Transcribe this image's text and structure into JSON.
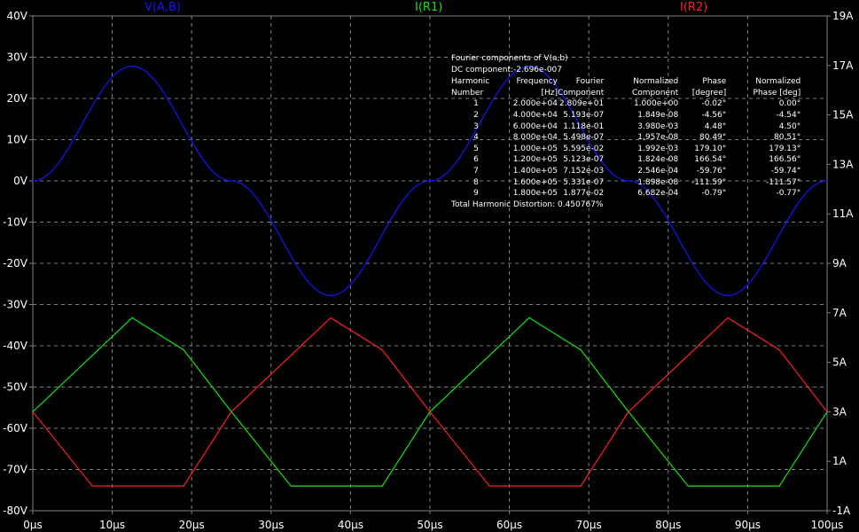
{
  "legend": {
    "vab": {
      "label": "V(A,B)",
      "color": "#1515ff"
    },
    "ir1": {
      "label": "I(R1)",
      "color": "#13e313"
    },
    "ir2": {
      "label": "I(R2)",
      "color": "#ff2020"
    }
  },
  "chart_data": {
    "type": "line",
    "background": "#000000",
    "grid": true,
    "grid_style": "dashed",
    "x_axis": {
      "range": [
        0,
        100
      ],
      "unit": "µs",
      "ticks": [
        0,
        10,
        20,
        30,
        40,
        50,
        60,
        70,
        80,
        90,
        100
      ],
      "tick_labels": [
        "0µs",
        "10µs",
        "20µs",
        "30µs",
        "40µs",
        "50µs",
        "60µs",
        "70µs",
        "80µs",
        "90µs",
        "100µs"
      ]
    },
    "y_left": {
      "range": [
        -80,
        40
      ],
      "ticks": [
        40,
        30,
        20,
        10,
        0,
        -10,
        -20,
        -30,
        -40,
        -50,
        -60,
        -70,
        -80
      ],
      "tick_labels": [
        "40V",
        "30V",
        "20V",
        "10V",
        "0V",
        "-10V",
        "-20V",
        "-30V",
        "-40V",
        "-50V",
        "-60V",
        "-70V",
        "-80V"
      ]
    },
    "y_right": {
      "range": [
        -1,
        19
      ],
      "ticks": [
        19,
        17,
        15,
        13,
        11,
        9,
        7,
        5,
        3,
        1,
        -1
      ],
      "tick_labels": [
        "19A",
        "17A",
        "15A",
        "13A",
        "11A",
        "9A",
        "7A",
        "5A",
        "3A",
        "1A",
        "-1A"
      ]
    },
    "series": [
      {
        "name": "V(A,B)",
        "axis": "left",
        "color": "#1515ff",
        "x": [
          0,
          12.5,
          25,
          37.5,
          50,
          62.5,
          75,
          87.5,
          100
        ],
        "y": [
          0,
          27.8,
          0,
          -27.8,
          0,
          27.8,
          0,
          -27.8,
          0
        ]
      },
      {
        "name": "I(R1)",
        "axis": "right",
        "color": "#13e313",
        "x": [
          0,
          12.5,
          19,
          25,
          32.5,
          44,
          50,
          62.5,
          69,
          75,
          82.5,
          94,
          100
        ],
        "y": [
          3,
          6.8,
          5.5,
          3,
          0,
          0,
          3,
          6.8,
          5.5,
          3,
          0,
          0,
          3
        ]
      },
      {
        "name": "I(R2)",
        "axis": "right",
        "color": "#ff2020",
        "x": [
          0,
          7.5,
          19,
          25,
          37.5,
          44,
          50,
          57.5,
          69,
          75,
          87.5,
          94,
          100
        ],
        "y": [
          3,
          0,
          0,
          3,
          6.8,
          5.5,
          3,
          0,
          0,
          3,
          6.8,
          5.5,
          3
        ]
      }
    ]
  },
  "fourier": {
    "title": "Fourier components of V(a,b)",
    "dc": "DC component:-2.696e-007",
    "headers1": [
      "Harmonic",
      "Frequency",
      "Fourier",
      "Normalized",
      "Phase",
      "Normalized"
    ],
    "headers2": [
      "Number",
      "[Hz]",
      "Component",
      "Component",
      "[degree]",
      "Phase [deg]"
    ],
    "rows": [
      [
        "1",
        "2.000e+04",
        "2.809e+01",
        "1.000e+00",
        "-0.02°",
        "0.00°"
      ],
      [
        "2",
        "4.000e+04",
        "5.193e-07",
        "1.849e-08",
        "-4.56°",
        "-4.54°"
      ],
      [
        "3",
        "6.000e+04",
        "1.118e-01",
        "3.980e-03",
        "4.48°",
        "4.50°"
      ],
      [
        "4",
        "8.000e+04",
        "5.498e-07",
        "1.957e-08",
        "80.49°",
        "80.51°"
      ],
      [
        "5",
        "1.000e+05",
        "5.595e-02",
        "1.992e-03",
        "179.10°",
        "179.13°"
      ],
      [
        "6",
        "1.200e+05",
        "5.123e-07",
        "1.824e-08",
        "166.54°",
        "166.56°"
      ],
      [
        "7",
        "1.400e+05",
        "7.152e-03",
        "2.546e-04",
        "-59.76°",
        "-59.74°"
      ],
      [
        "8",
        "1.600e+05",
        "5.331e-07",
        "1.898e-08",
        "-111.59°",
        "-111.57°"
      ],
      [
        "9",
        "1.800e+05",
        "1.877e-02",
        "6.682e-04",
        "-0.79°",
        "-0.77°"
      ]
    ],
    "thd": "Total Harmonic Distortion: 0.450767%"
  }
}
